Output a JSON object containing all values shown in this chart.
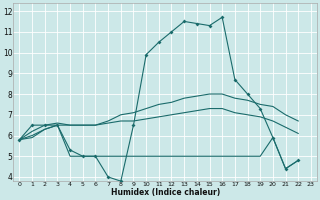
{
  "xlabel": "Humidex (Indice chaleur)",
  "bg_color": "#cce8e8",
  "grid_color": "#ffffff",
  "line_color": "#1a6b6b",
  "xlim": [
    -0.5,
    23.5
  ],
  "ylim": [
    3.8,
    12.4
  ],
  "xticks": [
    0,
    1,
    2,
    3,
    4,
    5,
    6,
    7,
    8,
    9,
    10,
    11,
    12,
    13,
    14,
    15,
    16,
    17,
    18,
    19,
    20,
    21,
    22,
    23
  ],
  "yticks": [
    4,
    5,
    6,
    7,
    8,
    9,
    10,
    11,
    12
  ],
  "series": [
    {
      "x": [
        0,
        1,
        2,
        3,
        4,
        5,
        6,
        7,
        8,
        9,
        10,
        11,
        12,
        13,
        14,
        15,
        16,
        17,
        18,
        19,
        20,
        21,
        22
      ],
      "y": [
        5.8,
        6.5,
        6.5,
        6.5,
        5.3,
        5.0,
        5.0,
        4.0,
        3.8,
        6.5,
        9.9,
        10.5,
        11.0,
        11.5,
        11.4,
        11.3,
        11.7,
        8.7,
        8.0,
        7.3,
        5.9,
        4.4,
        4.8
      ],
      "marker": true
    },
    {
      "x": [
        0,
        1,
        2,
        3,
        4,
        5,
        6,
        7,
        8,
        9,
        10,
        11,
        12,
        13,
        14,
        15,
        16,
        17,
        18,
        19,
        20,
        21,
        22
      ],
      "y": [
        5.8,
        6.2,
        6.5,
        6.6,
        6.5,
        6.5,
        6.5,
        6.7,
        7.0,
        7.1,
        7.3,
        7.5,
        7.6,
        7.8,
        7.9,
        8.0,
        8.0,
        7.8,
        7.7,
        7.5,
        7.4,
        7.0,
        6.7
      ],
      "marker": false
    },
    {
      "x": [
        0,
        1,
        2,
        3,
        4,
        5,
        6,
        7,
        8,
        9,
        10,
        11,
        12,
        13,
        14,
        15,
        16,
        17,
        18,
        19,
        20,
        21,
        22
      ],
      "y": [
        5.8,
        6.0,
        6.3,
        6.5,
        6.5,
        6.5,
        6.5,
        6.6,
        6.7,
        6.7,
        6.8,
        6.9,
        7.0,
        7.1,
        7.2,
        7.3,
        7.3,
        7.1,
        7.0,
        6.9,
        6.7,
        6.4,
        6.1
      ],
      "marker": false
    },
    {
      "x": [
        0,
        1,
        2,
        3,
        4,
        5,
        6,
        7,
        8,
        9,
        10,
        11,
        12,
        13,
        14,
        15,
        16,
        17,
        18,
        19,
        20,
        21,
        22
      ],
      "y": [
        5.8,
        5.9,
        6.3,
        6.5,
        5.0,
        5.0,
        5.0,
        5.0,
        5.0,
        5.0,
        5.0,
        5.0,
        5.0,
        5.0,
        5.0,
        5.0,
        5.0,
        5.0,
        5.0,
        5.0,
        5.9,
        4.4,
        4.8
      ],
      "marker": false
    }
  ]
}
